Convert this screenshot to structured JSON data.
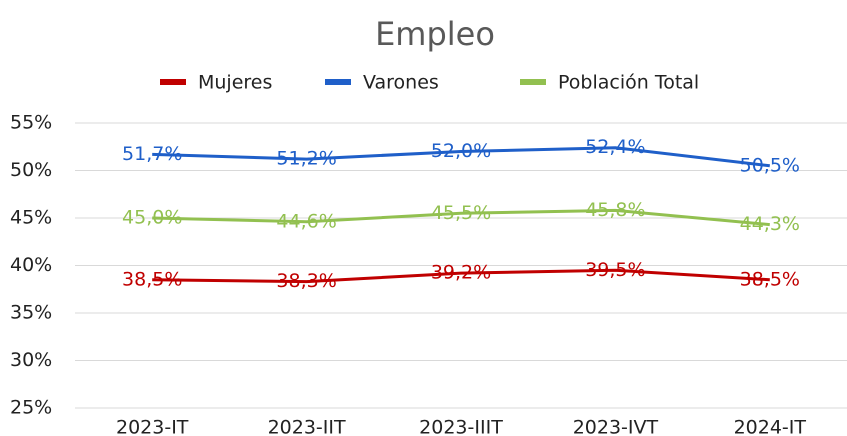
{
  "chart_data": {
    "type": "line",
    "title": "Empleo",
    "categories": [
      "2023-IT",
      "2023-IIT",
      "2023-IIIT",
      "2023-IVT",
      "2024-IT"
    ],
    "series": [
      {
        "name": "Mujeres",
        "color": "#c00000",
        "values": [
          38.5,
          38.3,
          39.2,
          39.5,
          38.5
        ],
        "value_labels": [
          "38,5%",
          "38,3%",
          "39,2%",
          "39,5%",
          "38,5%"
        ]
      },
      {
        "name": "Varones",
        "color": "#1f5fc9",
        "values": [
          51.7,
          51.2,
          52.0,
          52.4,
          50.5
        ],
        "value_labels": [
          "51,7%",
          "51,2%",
          "52,0%",
          "52,4%",
          "50,5%"
        ]
      },
      {
        "name": "Población Total",
        "color": "#92c050",
        "values": [
          45.0,
          44.6,
          45.5,
          45.8,
          44.3
        ],
        "value_labels": [
          "45,0%",
          "44,6%",
          "45,5%",
          "45,8%",
          "44,3%"
        ]
      }
    ],
    "ylim": [
      25,
      55
    ],
    "yticks": [
      {
        "value": 25,
        "label": "25%"
      },
      {
        "value": 30,
        "label": "30%"
      },
      {
        "value": 35,
        "label": "35%"
      },
      {
        "value": 40,
        "label": "40%"
      },
      {
        "value": 45,
        "label": "45%"
      },
      {
        "value": 50,
        "label": "50%"
      },
      {
        "value": 55,
        "label": "55%"
      }
    ],
    "grid": true,
    "legend": "top"
  }
}
